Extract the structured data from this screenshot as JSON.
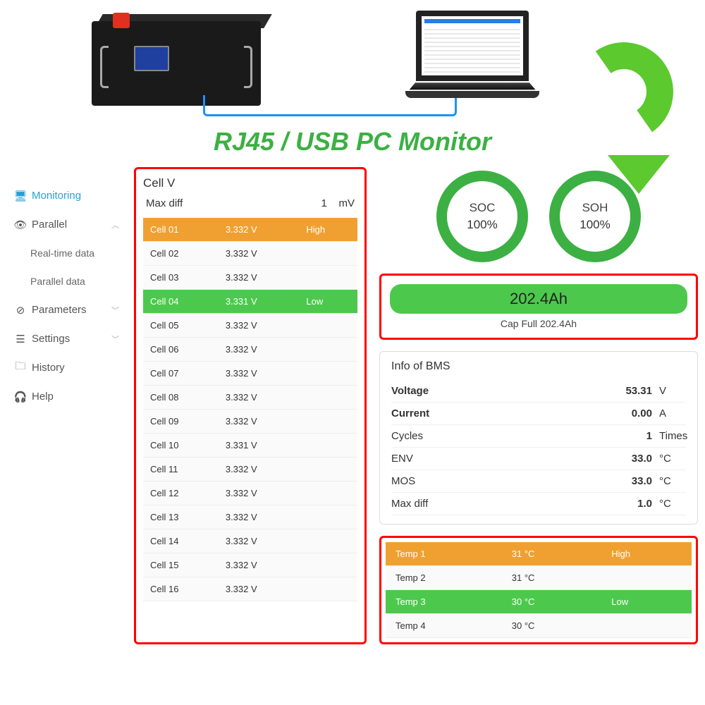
{
  "title": "RJ45 / USB PC Monitor",
  "colors": {
    "accent_green": "#3cb043",
    "highlight_red": "#ff0000",
    "row_high": "#f0a030",
    "row_low": "#4cc94c",
    "link_blue": "#2a9fd6",
    "cable_blue": "#1e90ff"
  },
  "sidebar": {
    "items": [
      {
        "label": "Monitoring",
        "icon": "🖥",
        "active": true
      },
      {
        "label": "Parallel",
        "icon": "👁",
        "chevron": "︿"
      },
      {
        "label": "Real-time data",
        "sub": true
      },
      {
        "label": "Parallel data",
        "sub": true
      },
      {
        "label": "Parameters",
        "icon": "⊘",
        "chevron": "﹀"
      },
      {
        "label": "Settings",
        "icon": "☰",
        "chevron": "﹀"
      },
      {
        "label": "History",
        "icon": "🗀"
      },
      {
        "label": "Help",
        "icon": "🎧"
      }
    ]
  },
  "cellv": {
    "title": "Cell V",
    "maxdiff_label": "Max diff",
    "maxdiff_value": "1",
    "maxdiff_unit": "mV",
    "high_label": "High",
    "low_label": "Low",
    "cells": [
      {
        "name": "Cell 01",
        "volt": "3.332 V",
        "state": "high"
      },
      {
        "name": "Cell 02",
        "volt": "3.332 V",
        "state": ""
      },
      {
        "name": "Cell 03",
        "volt": "3.332 V",
        "state": ""
      },
      {
        "name": "Cell 04",
        "volt": "3.331 V",
        "state": "low"
      },
      {
        "name": "Cell 05",
        "volt": "3.332 V",
        "state": ""
      },
      {
        "name": "Cell 06",
        "volt": "3.332 V",
        "state": ""
      },
      {
        "name": "Cell 07",
        "volt": "3.332 V",
        "state": ""
      },
      {
        "name": "Cell 08",
        "volt": "3.332 V",
        "state": ""
      },
      {
        "name": "Cell 09",
        "volt": "3.332 V",
        "state": ""
      },
      {
        "name": "Cell 10",
        "volt": "3.331 V",
        "state": ""
      },
      {
        "name": "Cell 11",
        "volt": "3.332 V",
        "state": ""
      },
      {
        "name": "Cell 12",
        "volt": "3.332 V",
        "state": ""
      },
      {
        "name": "Cell 13",
        "volt": "3.332 V",
        "state": ""
      },
      {
        "name": "Cell 14",
        "volt": "3.332 V",
        "state": ""
      },
      {
        "name": "Cell 15",
        "volt": "3.332 V",
        "state": ""
      },
      {
        "name": "Cell 16",
        "volt": "3.332 V",
        "state": ""
      }
    ]
  },
  "gauges": {
    "soc": {
      "label": "SOC",
      "value": "100%"
    },
    "soh": {
      "label": "SOH",
      "value": "100%"
    }
  },
  "capacity": {
    "main": "202.4Ah",
    "sub": "Cap Full 202.4Ah"
  },
  "bms": {
    "title": "Info of BMS",
    "rows": [
      {
        "label": "Voltage",
        "value": "53.31",
        "unit": "V",
        "bold": true
      },
      {
        "label": "Current",
        "value": "0.00",
        "unit": "A",
        "bold": true
      },
      {
        "label": "Cycles",
        "value": "1",
        "unit": "Times"
      },
      {
        "label": "ENV",
        "value": "33.0",
        "unit": "°C"
      },
      {
        "label": "MOS",
        "value": "33.0",
        "unit": "°C"
      },
      {
        "label": "Max diff",
        "value": "1.0",
        "unit": "°C"
      }
    ]
  },
  "temps": {
    "high_label": "High",
    "low_label": "Low",
    "rows": [
      {
        "name": "Temp 1",
        "val": "31 °C",
        "state": "high"
      },
      {
        "name": "Temp 2",
        "val": "31 °C",
        "state": ""
      },
      {
        "name": "Temp 3",
        "val": "30 °C",
        "state": "low"
      },
      {
        "name": "Temp 4",
        "val": "30 °C",
        "state": ""
      }
    ]
  }
}
